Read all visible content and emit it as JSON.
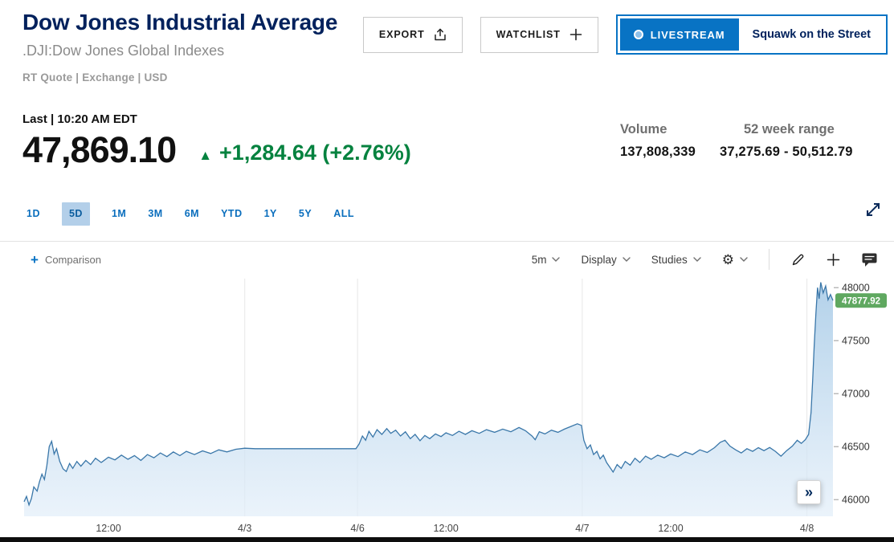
{
  "page": {
    "title": "Dow Jones Industrial Average",
    "subtitle": ".DJI:Dow Jones Global Indexes",
    "quote_meta": "RT Quote | Exchange | USD"
  },
  "header_buttons": {
    "export": "EXPORT",
    "watchlist": "WATCHLIST",
    "livestream": "LIVESTREAM",
    "livestream_show": "Squawk on the Street"
  },
  "quote": {
    "last_label": "Last | 10:20 AM EDT",
    "price": "47,869.10",
    "up_arrow": "▲",
    "change": "+1,284.64 (+2.76%)",
    "volume_label": "Volume",
    "volume_value": "137,808,339",
    "range_label": "52 week range",
    "range_value": "37,275.69 - 50,512.79"
  },
  "range_tabs": {
    "items": [
      {
        "label": "1D",
        "selected": false
      },
      {
        "label": "5D",
        "selected": true
      },
      {
        "label": "1M",
        "selected": false
      },
      {
        "label": "3M",
        "selected": false
      },
      {
        "label": "6M",
        "selected": false
      },
      {
        "label": "YTD",
        "selected": false
      },
      {
        "label": "1Y",
        "selected": false
      },
      {
        "label": "5Y",
        "selected": false
      },
      {
        "label": "ALL",
        "selected": false
      }
    ]
  },
  "toolbar": {
    "comparison_plus": "+",
    "comparison": "Comparison",
    "interval": "5m",
    "display": "Display",
    "studies": "Studies",
    "gear_glyph": "⚙",
    "jump_latest": "»"
  },
  "icons": {
    "export": "tray-arrow-up",
    "watchlist": "plus",
    "live_dot": "circle-dot",
    "expand": "diagonal-double-arrow",
    "settings": "gear",
    "draw": "pencil",
    "add": "plus",
    "comments": "speech-bubble"
  },
  "colors": {
    "accent_blue": "#0873c4",
    "title_navy": "#00215c",
    "green": "#05823f",
    "badge_green": "#5fa860",
    "line_blue": "#3a77a9",
    "tab_selected_bg": "#b3cfe9",
    "tab_blue": "#0a6ebd"
  },
  "chart_data": {
    "type": "area",
    "title": "Dow Jones Industrial Average 5-day intraday price",
    "symbol": ".DJI",
    "interval": "5m",
    "ylim": [
      45900,
      48100
    ],
    "y_ticks": [
      48000,
      47500,
      47000,
      46500,
      46000
    ],
    "x_ticks": [
      {
        "f": 0.104,
        "label": "12:00"
      },
      {
        "f": 0.272,
        "label": "4/3"
      },
      {
        "f": 0.411,
        "label": "4/6"
      },
      {
        "f": 0.52,
        "label": "12:00"
      },
      {
        "f": 0.688,
        "label": "4/7"
      },
      {
        "f": 0.797,
        "label": "12:00"
      },
      {
        "f": 0.965,
        "label": "4/8"
      }
    ],
    "gridlines_f": [
      0.272,
      0.411,
      0.688,
      0.965
    ],
    "last": {
      "value": 47877.92,
      "label": "47877.92"
    },
    "series": [
      {
        "name": ".DJI",
        "points": [
          [
            0.0,
            45980
          ],
          [
            0.003,
            46030
          ],
          [
            0.006,
            45950
          ],
          [
            0.009,
            46010
          ],
          [
            0.012,
            46120
          ],
          [
            0.016,
            46080
          ],
          [
            0.019,
            46170
          ],
          [
            0.022,
            46240
          ],
          [
            0.025,
            46190
          ],
          [
            0.028,
            46320
          ],
          [
            0.031,
            46500
          ],
          [
            0.034,
            46550
          ],
          [
            0.037,
            46430
          ],
          [
            0.04,
            46480
          ],
          [
            0.044,
            46360
          ],
          [
            0.048,
            46290
          ],
          [
            0.052,
            46265
          ],
          [
            0.056,
            46340
          ],
          [
            0.06,
            46295
          ],
          [
            0.065,
            46360
          ],
          [
            0.07,
            46315
          ],
          [
            0.076,
            46370
          ],
          [
            0.082,
            46330
          ],
          [
            0.088,
            46390
          ],
          [
            0.095,
            46350
          ],
          [
            0.104,
            46400
          ],
          [
            0.112,
            46375
          ],
          [
            0.12,
            46420
          ],
          [
            0.128,
            46380
          ],
          [
            0.136,
            46415
          ],
          [
            0.144,
            46370
          ],
          [
            0.152,
            46425
          ],
          [
            0.16,
            46395
          ],
          [
            0.168,
            46440
          ],
          [
            0.176,
            46405
          ],
          [
            0.184,
            46450
          ],
          [
            0.192,
            46415
          ],
          [
            0.2,
            46455
          ],
          [
            0.21,
            46425
          ],
          [
            0.22,
            46460
          ],
          [
            0.23,
            46435
          ],
          [
            0.24,
            46470
          ],
          [
            0.25,
            46450
          ],
          [
            0.261,
            46475
          ],
          [
            0.272,
            46485
          ],
          [
            0.285,
            46480
          ],
          [
            0.409,
            46480
          ],
          [
            0.413,
            46525
          ],
          [
            0.417,
            46600
          ],
          [
            0.421,
            46560
          ],
          [
            0.425,
            46645
          ],
          [
            0.43,
            46590
          ],
          [
            0.435,
            46660
          ],
          [
            0.441,
            46615
          ],
          [
            0.447,
            46670
          ],
          [
            0.452,
            46625
          ],
          [
            0.458,
            46655
          ],
          [
            0.464,
            46600
          ],
          [
            0.47,
            46640
          ],
          [
            0.476,
            46575
          ],
          [
            0.482,
            46615
          ],
          [
            0.488,
            46555
          ],
          [
            0.494,
            46605
          ],
          [
            0.5,
            46575
          ],
          [
            0.507,
            46620
          ],
          [
            0.514,
            46595
          ],
          [
            0.52,
            46630
          ],
          [
            0.528,
            46605
          ],
          [
            0.536,
            46645
          ],
          [
            0.544,
            46615
          ],
          [
            0.552,
            46650
          ],
          [
            0.561,
            46625
          ],
          [
            0.57,
            46660
          ],
          [
            0.58,
            46635
          ],
          [
            0.59,
            46665
          ],
          [
            0.6,
            46640
          ],
          [
            0.61,
            46680
          ],
          [
            0.618,
            46650
          ],
          [
            0.626,
            46600
          ],
          [
            0.63,
            46565
          ],
          [
            0.635,
            46640
          ],
          [
            0.642,
            46620
          ],
          [
            0.65,
            46655
          ],
          [
            0.658,
            46635
          ],
          [
            0.666,
            46665
          ],
          [
            0.674,
            46690
          ],
          [
            0.682,
            46715
          ],
          [
            0.687,
            46700
          ],
          [
            0.69,
            46560
          ],
          [
            0.694,
            46480
          ],
          [
            0.698,
            46515
          ],
          [
            0.702,
            46425
          ],
          [
            0.706,
            46455
          ],
          [
            0.71,
            46385
          ],
          [
            0.714,
            46420
          ],
          [
            0.718,
            46350
          ],
          [
            0.722,
            46305
          ],
          [
            0.726,
            46260
          ],
          [
            0.731,
            46330
          ],
          [
            0.736,
            46295
          ],
          [
            0.741,
            46360
          ],
          [
            0.747,
            46325
          ],
          [
            0.753,
            46390
          ],
          [
            0.759,
            46350
          ],
          [
            0.766,
            46410
          ],
          [
            0.773,
            46380
          ],
          [
            0.781,
            46420
          ],
          [
            0.789,
            46395
          ],
          [
            0.797,
            46430
          ],
          [
            0.806,
            46405
          ],
          [
            0.815,
            46450
          ],
          [
            0.824,
            46425
          ],
          [
            0.833,
            46470
          ],
          [
            0.842,
            46445
          ],
          [
            0.851,
            46490
          ],
          [
            0.858,
            46540
          ],
          [
            0.864,
            46560
          ],
          [
            0.87,
            46505
          ],
          [
            0.877,
            46470
          ],
          [
            0.884,
            46440
          ],
          [
            0.891,
            46480
          ],
          [
            0.898,
            46455
          ],
          [
            0.905,
            46490
          ],
          [
            0.912,
            46462
          ],
          [
            0.919,
            46492
          ],
          [
            0.926,
            46455
          ],
          [
            0.933,
            46410
          ],
          [
            0.94,
            46462
          ],
          [
            0.947,
            46505
          ],
          [
            0.953,
            46560
          ],
          [
            0.958,
            46530
          ],
          [
            0.963,
            46565
          ],
          [
            0.967,
            46615
          ],
          [
            0.97,
            46820
          ],
          [
            0.972,
            47120
          ],
          [
            0.974,
            47460
          ],
          [
            0.976,
            47760
          ],
          [
            0.978,
            48000
          ],
          [
            0.98,
            47895
          ],
          [
            0.982,
            48050
          ],
          [
            0.985,
            47950
          ],
          [
            0.988,
            48015
          ],
          [
            0.991,
            47885
          ],
          [
            0.994,
            47935
          ],
          [
            0.997,
            47877.92
          ]
        ]
      }
    ]
  }
}
